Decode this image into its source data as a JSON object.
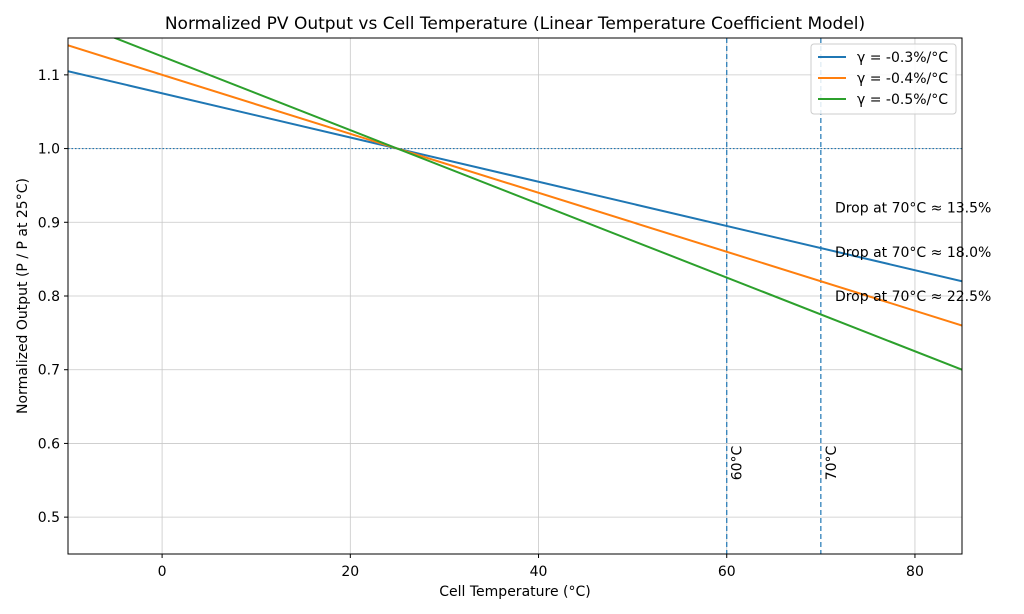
{
  "chart_data": {
    "type": "line",
    "title": "Normalized PV Output vs Cell Temperature (Linear Temperature Coefficient Model)",
    "xlabel": "Cell Temperature (°C)",
    "ylabel": "Normalized Output (P / P at 25°C)",
    "xlim": [
      -10,
      85
    ],
    "ylim": [
      0.45,
      1.15
    ],
    "xticks": [
      0,
      20,
      40,
      60,
      80
    ],
    "yticks": [
      0.5,
      0.6,
      0.7,
      0.8,
      0.9,
      1.0,
      1.1
    ],
    "xtick_labels": [
      "0",
      "20",
      "40",
      "60",
      "80"
    ],
    "ytick_labels": [
      "0.5",
      "0.6",
      "0.7",
      "0.8",
      "0.9",
      "1.0",
      "1.1"
    ],
    "grid": true,
    "legend_position": "top-right",
    "series": [
      {
        "name": "γ = -0.3%/°C",
        "color": "#1f77b4",
        "x": [
          -10,
          85
        ],
        "y": [
          1.105,
          0.82
        ]
      },
      {
        "name": "γ = -0.4%/°C",
        "color": "#ff7f0e",
        "x": [
          -10,
          85
        ],
        "y": [
          1.14,
          0.76
        ]
      },
      {
        "name": "γ = -0.5%/°C",
        "color": "#2ca02c",
        "x": [
          -10,
          85
        ],
        "y": [
          1.175,
          0.7
        ]
      }
    ],
    "reference_lines": [
      {
        "orientation": "horizontal",
        "value": 1.0,
        "style": "dotted",
        "color": "#1f77b4"
      },
      {
        "orientation": "vertical",
        "value": 60,
        "style": "dashed",
        "color": "#1f77b4",
        "label": "60°C"
      },
      {
        "orientation": "vertical",
        "value": 70,
        "style": "dashed",
        "color": "#1f77b4",
        "label": "70°C"
      }
    ],
    "annotations": [
      {
        "text": "Drop at 70°C ≈ 13.5%",
        "x": 71.5,
        "y": 0.92
      },
      {
        "text": "Drop at 70°C ≈ 18.0%",
        "x": 71.5,
        "y": 0.86
      },
      {
        "text": "Drop at 70°C ≈ 22.5%",
        "x": 71.5,
        "y": 0.8
      }
    ]
  }
}
